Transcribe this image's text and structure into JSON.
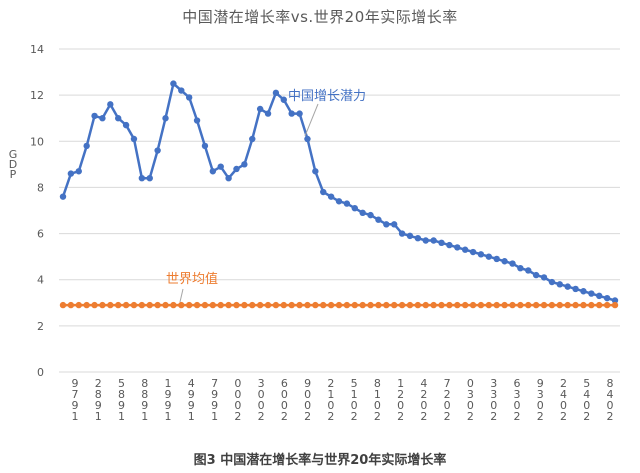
{
  "chart_data": {
    "type": "line",
    "title": "中国潜在增长率vs.世界20年实际增长率",
    "caption": "图3  中国潜在增长率与世界20年实际增长率",
    "ylabel": "GDP",
    "ylim": [
      0,
      14
    ],
    "yticks": [
      "0",
      "2",
      "4",
      "6",
      "8",
      "10",
      "12",
      "14"
    ],
    "grid": true,
    "legend": "inline labels",
    "xtick_labels": [
      [
        "9",
        "7",
        "9",
        "1"
      ],
      [
        "2",
        "8",
        "9",
        "1"
      ],
      [
        "5",
        "8",
        "9",
        "1"
      ],
      [
        "8",
        "8",
        "9",
        "1"
      ],
      [
        "1",
        "9",
        "9",
        "1"
      ],
      [
        "4",
        "9",
        "9",
        "1"
      ],
      [
        "7",
        "9",
        "9",
        "1"
      ],
      [
        "0",
        "0",
        "0",
        "2"
      ],
      [
        "3",
        "0",
        "0",
        "2"
      ],
      [
        "6",
        "0",
        "0",
        "2"
      ],
      [
        "9",
        "0",
        "0",
        "2"
      ],
      [
        "2",
        "1",
        "0",
        "2"
      ],
      [
        "5",
        "1",
        "0",
        "2"
      ],
      [
        "8",
        "1",
        "0",
        "2"
      ],
      [
        "1",
        "2",
        "0",
        "2"
      ],
      [
        "4",
        "2",
        "0",
        "2"
      ],
      [
        "7",
        "2",
        "0",
        "2"
      ],
      [
        "0",
        "3",
        "0",
        "2"
      ],
      [
        "3",
        "3",
        "0",
        "2"
      ],
      [
        "6",
        "3",
        "0",
        "2"
      ],
      [
        "9",
        "3",
        "0",
        "2"
      ],
      [
        "2",
        "4",
        "0",
        "2"
      ],
      [
        "5",
        "4",
        "0",
        "2"
      ],
      [
        "8",
        "4",
        "0",
        "2"
      ]
    ],
    "series": [
      {
        "name": "中国增长潜力",
        "color": "#4472C4",
        "values": [
          7.6,
          8.6,
          8.7,
          9.8,
          11.1,
          11.0,
          11.6,
          11.0,
          10.7,
          10.1,
          8.4,
          8.4,
          9.6,
          11.0,
          12.5,
          12.2,
          11.9,
          10.9,
          9.8,
          8.7,
          8.9,
          8.4,
          8.8,
          9.0,
          10.1,
          11.4,
          11.2,
          12.1,
          11.8,
          11.2,
          11.2,
          10.1,
          8.7,
          7.8,
          7.6,
          7.4,
          7.3,
          7.1,
          6.9,
          6.8,
          6.6,
          6.4,
          6.4,
          6.0,
          5.9,
          5.8,
          5.7,
          5.7,
          5.6,
          5.5,
          5.4,
          5.3,
          5.2,
          5.1,
          5.0,
          4.9,
          4.8,
          4.7,
          4.5,
          4.4,
          4.2,
          4.1,
          3.9,
          3.8,
          3.7,
          3.6,
          3.5,
          3.4,
          3.3,
          3.2,
          3.1
        ]
      },
      {
        "name": "世界均值",
        "color": "#ED7D31",
        "values": [
          2.9,
          2.9,
          2.9,
          2.9,
          2.9,
          2.9,
          2.9,
          2.9,
          2.9,
          2.9,
          2.9,
          2.9,
          2.9,
          2.9,
          2.9,
          2.9,
          2.9,
          2.9,
          2.9,
          2.9,
          2.9,
          2.9,
          2.9,
          2.9,
          2.9,
          2.9,
          2.9,
          2.9,
          2.9,
          2.9,
          2.9,
          2.9,
          2.9,
          2.9,
          2.9,
          2.9,
          2.9,
          2.9,
          2.9,
          2.9,
          2.9,
          2.9,
          2.9,
          2.9,
          2.9,
          2.9,
          2.9,
          2.9,
          2.9,
          2.9,
          2.9,
          2.9,
          2.9,
          2.9,
          2.9,
          2.9,
          2.9,
          2.9,
          2.9,
          2.9,
          2.9,
          2.9,
          2.9,
          2.9,
          2.9,
          2.9,
          2.9,
          2.9,
          2.9,
          2.9,
          2.9
        ]
      }
    ],
    "annotations": [
      "中国增长潜力",
      "世界均值"
    ]
  },
  "colors": {
    "grid": "#D9D9D9",
    "axis_text": "#595959",
    "china": "#4472C4",
    "world": "#ED7D31"
  }
}
